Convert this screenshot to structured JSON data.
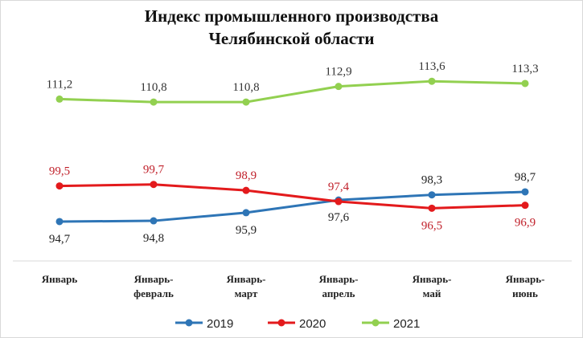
{
  "chart_data": {
    "type": "line",
    "title_lines": [
      "Индекс промышленного производства",
      "Челябинской области"
    ],
    "categories": [
      [
        "Январь"
      ],
      [
        "Январь-",
        "февраль"
      ],
      [
        "Январь-",
        "март"
      ],
      [
        "Январь-",
        "апрель"
      ],
      [
        "Январь-",
        "май"
      ],
      [
        "Январь-",
        "июнь"
      ]
    ],
    "series": [
      {
        "name": "2019",
        "color": "#2e75b6",
        "values": [
          94.7,
          94.8,
          95.9,
          97.6,
          98.3,
          98.7
        ],
        "label_color": "#222222"
      },
      {
        "name": "2020",
        "color": "#e31a1c",
        "values": [
          99.5,
          99.7,
          98.9,
          97.4,
          96.5,
          96.9
        ],
        "label_color": "#c0202a"
      },
      {
        "name": "2021",
        "color": "#92d050",
        "values": [
          111.2,
          110.8,
          110.8,
          112.9,
          113.6,
          113.3
        ],
        "label_color": "#333333"
      }
    ],
    "value_labels": [
      [
        "94,7",
        "94,8",
        "95,9",
        "97,6",
        "98,3",
        "98,7"
      ],
      [
        "99,5",
        "99,7",
        "98,9",
        "97,4",
        "96,5",
        "96,9"
      ],
      [
        "111,2",
        "110,8",
        "110,8",
        "112,9",
        "113,6",
        "113,3"
      ]
    ],
    "ylim": [
      89.4,
      120
    ],
    "y_axis_visible": false,
    "grid": false,
    "legend": "bottom"
  }
}
